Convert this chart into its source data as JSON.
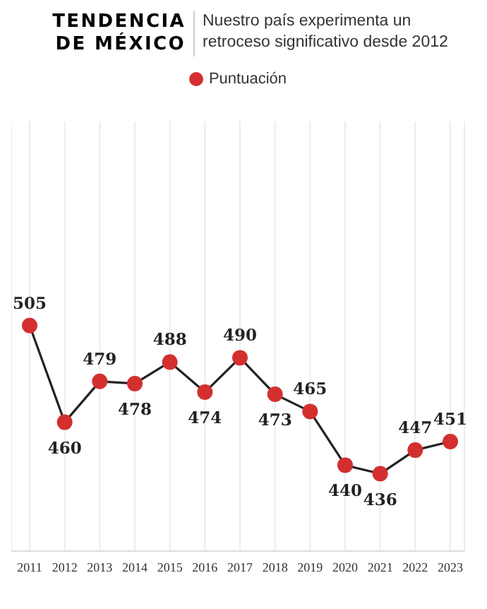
{
  "chart_data": {
    "type": "line",
    "title": "TENDENCIA DE MÉXICO",
    "subtitle": "Nuestro país experimenta un retroceso significativo desde 2012",
    "categories": [
      "2011",
      "2012",
      "2013",
      "2014",
      "2015",
      "2016",
      "2017",
      "2018",
      "2019",
      "2020",
      "2021",
      "2022",
      "2023"
    ],
    "series": [
      {
        "name": "Puntuación",
        "color": "#d32f2f",
        "values": [
          505,
          460,
          479,
          478,
          488,
          474,
          490,
          473,
          465,
          440,
          436,
          447,
          451
        ]
      }
    ],
    "ylim": [
      400,
      600
    ],
    "tick_labels": "x",
    "grid": "x",
    "legend": "top",
    "marker": "circle",
    "data_labels": true
  }
}
